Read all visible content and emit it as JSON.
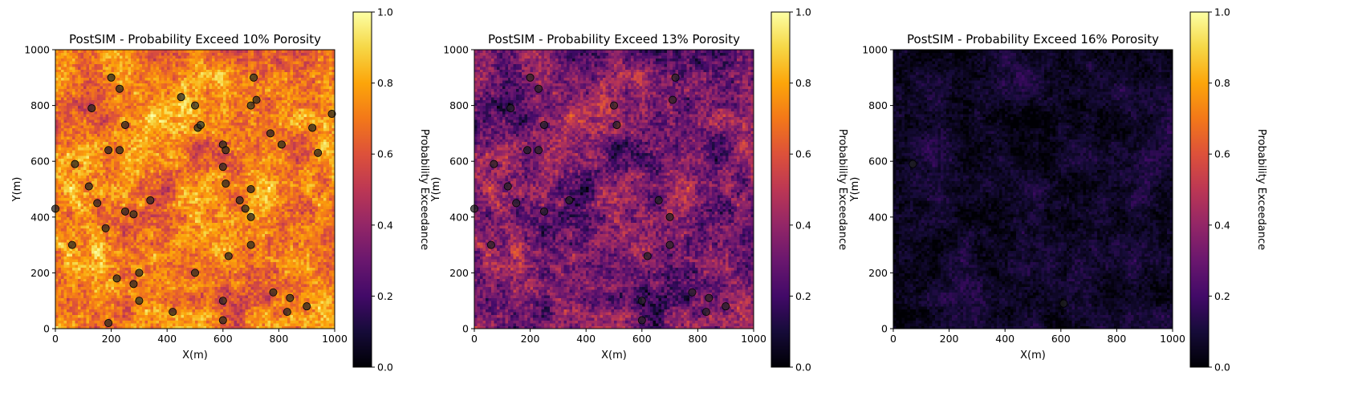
{
  "colorbar": {
    "colormap": "inferno",
    "label": "Probability Exceedance",
    "range": [
      0.0,
      1.0
    ],
    "tick_labels": [
      "0.0",
      "0.2",
      "0.4",
      "0.6",
      "0.8",
      "1.0"
    ]
  },
  "marker_color": "#222222",
  "chart_data": [
    {
      "type": "heatmap",
      "title": "PostSIM - Probability Exceed 10% Porosity",
      "xlabel": "X(m)",
      "ylabel": "Y(m)",
      "xlim": [
        0,
        1000
      ],
      "ylim": [
        0,
        1000
      ],
      "x_tick_labels": [
        "0",
        "200",
        "400",
        "600",
        "800",
        "1000"
      ],
      "y_tick_labels": [
        "0",
        "200",
        "400",
        "600",
        "800",
        "1000"
      ],
      "grid": 100,
      "cell_size": 10,
      "field_mean": 0.72,
      "field_spread": 0.18,
      "value_range": [
        0,
        1
      ],
      "wells": [
        [
          200,
          900
        ],
        [
          230,
          860
        ],
        [
          130,
          790
        ],
        [
          710,
          900
        ],
        [
          720,
          820
        ],
        [
          700,
          800
        ],
        [
          450,
          830
        ],
        [
          500,
          800
        ],
        [
          510,
          720
        ],
        [
          520,
          730
        ],
        [
          250,
          730
        ],
        [
          190,
          640
        ],
        [
          230,
          640
        ],
        [
          70,
          590
        ],
        [
          600,
          660
        ],
        [
          610,
          640
        ],
        [
          600,
          580
        ],
        [
          610,
          520
        ],
        [
          920,
          720
        ],
        [
          990,
          770
        ],
        [
          940,
          630
        ],
        [
          810,
          660
        ],
        [
          770,
          700
        ],
        [
          120,
          510
        ],
        [
          150,
          450
        ],
        [
          340,
          460
        ],
        [
          0,
          430
        ],
        [
          250,
          420
        ],
        [
          280,
          410
        ],
        [
          660,
          460
        ],
        [
          680,
          430
        ],
        [
          700,
          500
        ],
        [
          700,
          400
        ],
        [
          180,
          360
        ],
        [
          60,
          300
        ],
        [
          620,
          260
        ],
        [
          700,
          300
        ],
        [
          500,
          200
        ],
        [
          300,
          200
        ],
        [
          220,
          180
        ],
        [
          280,
          160
        ],
        [
          300,
          100
        ],
        [
          420,
          60
        ],
        [
          600,
          100
        ],
        [
          600,
          30
        ],
        [
          780,
          130
        ],
        [
          840,
          110
        ],
        [
          830,
          60
        ],
        [
          900,
          80
        ],
        [
          190,
          20
        ]
      ]
    },
    {
      "type": "heatmap",
      "title": "PostSIM - Probability Exceed 13% Porosity",
      "xlabel": "X(m)",
      "ylabel": "Y(m)",
      "xlim": [
        0,
        1000
      ],
      "ylim": [
        0,
        1000
      ],
      "x_tick_labels": [
        "0",
        "200",
        "400",
        "600",
        "800",
        "1000"
      ],
      "y_tick_labels": [
        "0",
        "200",
        "400",
        "600",
        "800",
        "1000"
      ],
      "grid": 100,
      "cell_size": 10,
      "field_mean": 0.34,
      "field_spread": 0.2,
      "value_range": [
        0,
        1
      ],
      "wells": [
        [
          200,
          900
        ],
        [
          230,
          860
        ],
        [
          130,
          790
        ],
        [
          720,
          900
        ],
        [
          710,
          820
        ],
        [
          500,
          800
        ],
        [
          510,
          730
        ],
        [
          250,
          730
        ],
        [
          190,
          640
        ],
        [
          230,
          640
        ],
        [
          70,
          590
        ],
        [
          120,
          510
        ],
        [
          150,
          450
        ],
        [
          340,
          460
        ],
        [
          250,
          420
        ],
        [
          660,
          460
        ],
        [
          700,
          400
        ],
        [
          60,
          300
        ],
        [
          620,
          260
        ],
        [
          700,
          300
        ],
        [
          600,
          100
        ],
        [
          600,
          30
        ],
        [
          780,
          130
        ],
        [
          840,
          110
        ],
        [
          830,
          60
        ],
        [
          900,
          80
        ],
        [
          0,
          430
        ]
      ]
    },
    {
      "type": "heatmap",
      "title": "PostSIM - Probability Exceed 16% Porosity",
      "xlabel": "X(m)",
      "ylabel": "Y(m)",
      "xlim": [
        0,
        1000
      ],
      "ylim": [
        0,
        1000
      ],
      "x_tick_labels": [
        "0",
        "200",
        "400",
        "600",
        "800",
        "1000"
      ],
      "y_tick_labels": [
        "0",
        "200",
        "400",
        "600",
        "800",
        "1000"
      ],
      "grid": 100,
      "cell_size": 10,
      "field_mean": 0.07,
      "field_spread": 0.08,
      "value_range": [
        0,
        1
      ],
      "wells": [
        [
          70,
          590
        ],
        [
          610,
          90
        ]
      ]
    }
  ]
}
